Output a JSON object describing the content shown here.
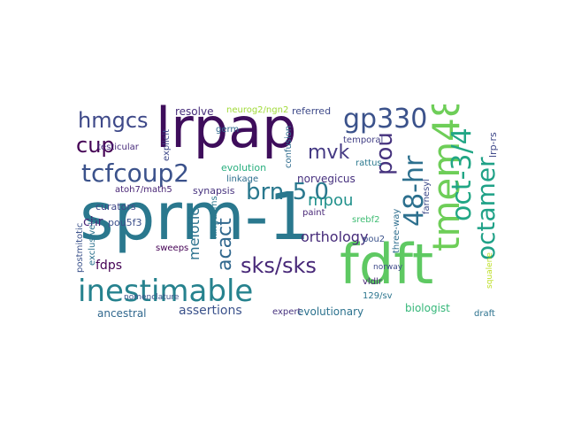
{
  "words": [
    {
      "text": "sprm-1",
      "color": "#2a788e"
    },
    {
      "text": "lrpap",
      "color": "#3e0d5b"
    },
    {
      "text": "fdft",
      "color": "#5ec962"
    },
    {
      "text": "inestimable",
      "color": "#26828e"
    },
    {
      "text": "tmem48",
      "color": "#6ece58"
    },
    {
      "text": "gp330",
      "color": "#3b528b"
    },
    {
      "text": "oct-3/4",
      "color": "#21a685"
    },
    {
      "text": "octamer",
      "color": "#1fa187"
    },
    {
      "text": "48-hr",
      "color": "#2d708e"
    },
    {
      "text": "tcfcoup2",
      "color": "#3b528b"
    },
    {
      "text": "brn-5.0",
      "color": "#2a788e"
    },
    {
      "text": "hmgcs",
      "color": "#3e4989"
    },
    {
      "text": "pou",
      "color": "#46337e"
    },
    {
      "text": "sks/sks",
      "color": "#482878"
    },
    {
      "text": "cup",
      "color": "#440154"
    },
    {
      "text": "acact",
      "color": "#31688e"
    },
    {
      "text": "mvk",
      "color": "#443983"
    },
    {
      "text": "mpou",
      "color": "#21918c"
    },
    {
      "text": "orthology",
      "color": "#472c7a"
    },
    {
      "text": "meiotic",
      "color": "#2c728e"
    },
    {
      "text": "assertions",
      "color": "#3b528b"
    },
    {
      "text": "ancestral",
      "color": "#31688e"
    },
    {
      "text": "evolutionary",
      "color": "#2c728e"
    },
    {
      "text": "biologist",
      "color": "#35b779"
    },
    {
      "text": "fdps",
      "color": "#440154"
    },
    {
      "text": "resolve",
      "color": "#472d7b"
    },
    {
      "text": "neurog2/ngn2",
      "color": "#a0da39"
    },
    {
      "text": "referred",
      "color": "#3e4a89"
    },
    {
      "text": "chr",
      "color": "#482677"
    },
    {
      "text": "curators",
      "color": "#3f4788"
    },
    {
      "text": "synapsis",
      "color": "#46327e"
    },
    {
      "text": "evolution",
      "color": "#29af7f"
    },
    {
      "text": "linkage",
      "color": "#2e6e8e"
    },
    {
      "text": "norvegicus",
      "color": "#46307e"
    },
    {
      "text": "pou5f3",
      "color": "#3c508b"
    },
    {
      "text": "atoh7/math5",
      "color": "#482475"
    },
    {
      "text": "germ",
      "color": "#31688e"
    },
    {
      "text": "confusion",
      "color": "#2f6c8e"
    },
    {
      "text": "temporal",
      "color": "#423f85"
    },
    {
      "text": "rattus",
      "color": "#2a788e"
    },
    {
      "text": "lrp-rs",
      "color": "#3f4889"
    },
    {
      "text": "paint",
      "color": "#482777"
    },
    {
      "text": "srebf2",
      "color": "#3fbc73"
    },
    {
      "text": "pou2",
      "color": "#3b528b"
    },
    {
      "text": "farnesyl",
      "color": "#3e4a89"
    },
    {
      "text": "draft",
      "color": "#2c728e"
    },
    {
      "text": "vldlr",
      "color": "#482475"
    },
    {
      "text": "129/sv",
      "color": "#2b758e"
    },
    {
      "text": "squalene",
      "color": "#bddf26"
    },
    {
      "text": "sweeps",
      "color": "#440154"
    },
    {
      "text": "kingdoms",
      "color": "#2a788e"
    },
    {
      "text": "postmitotic",
      "color": "#3b528b"
    },
    {
      "text": "exclusively",
      "color": "#2c728e"
    },
    {
      "text": "explicit",
      "color": "#3e4989"
    },
    {
      "text": "testicular",
      "color": "#472a7a"
    },
    {
      "text": "expert",
      "color": "#46327e"
    },
    {
      "text": "three-way",
      "color": "#2e6e8e"
    },
    {
      "text": "norway",
      "color": "#3e4a89"
    },
    {
      "text": "nomenclature",
      "color": "#3b528b"
    }
  ]
}
